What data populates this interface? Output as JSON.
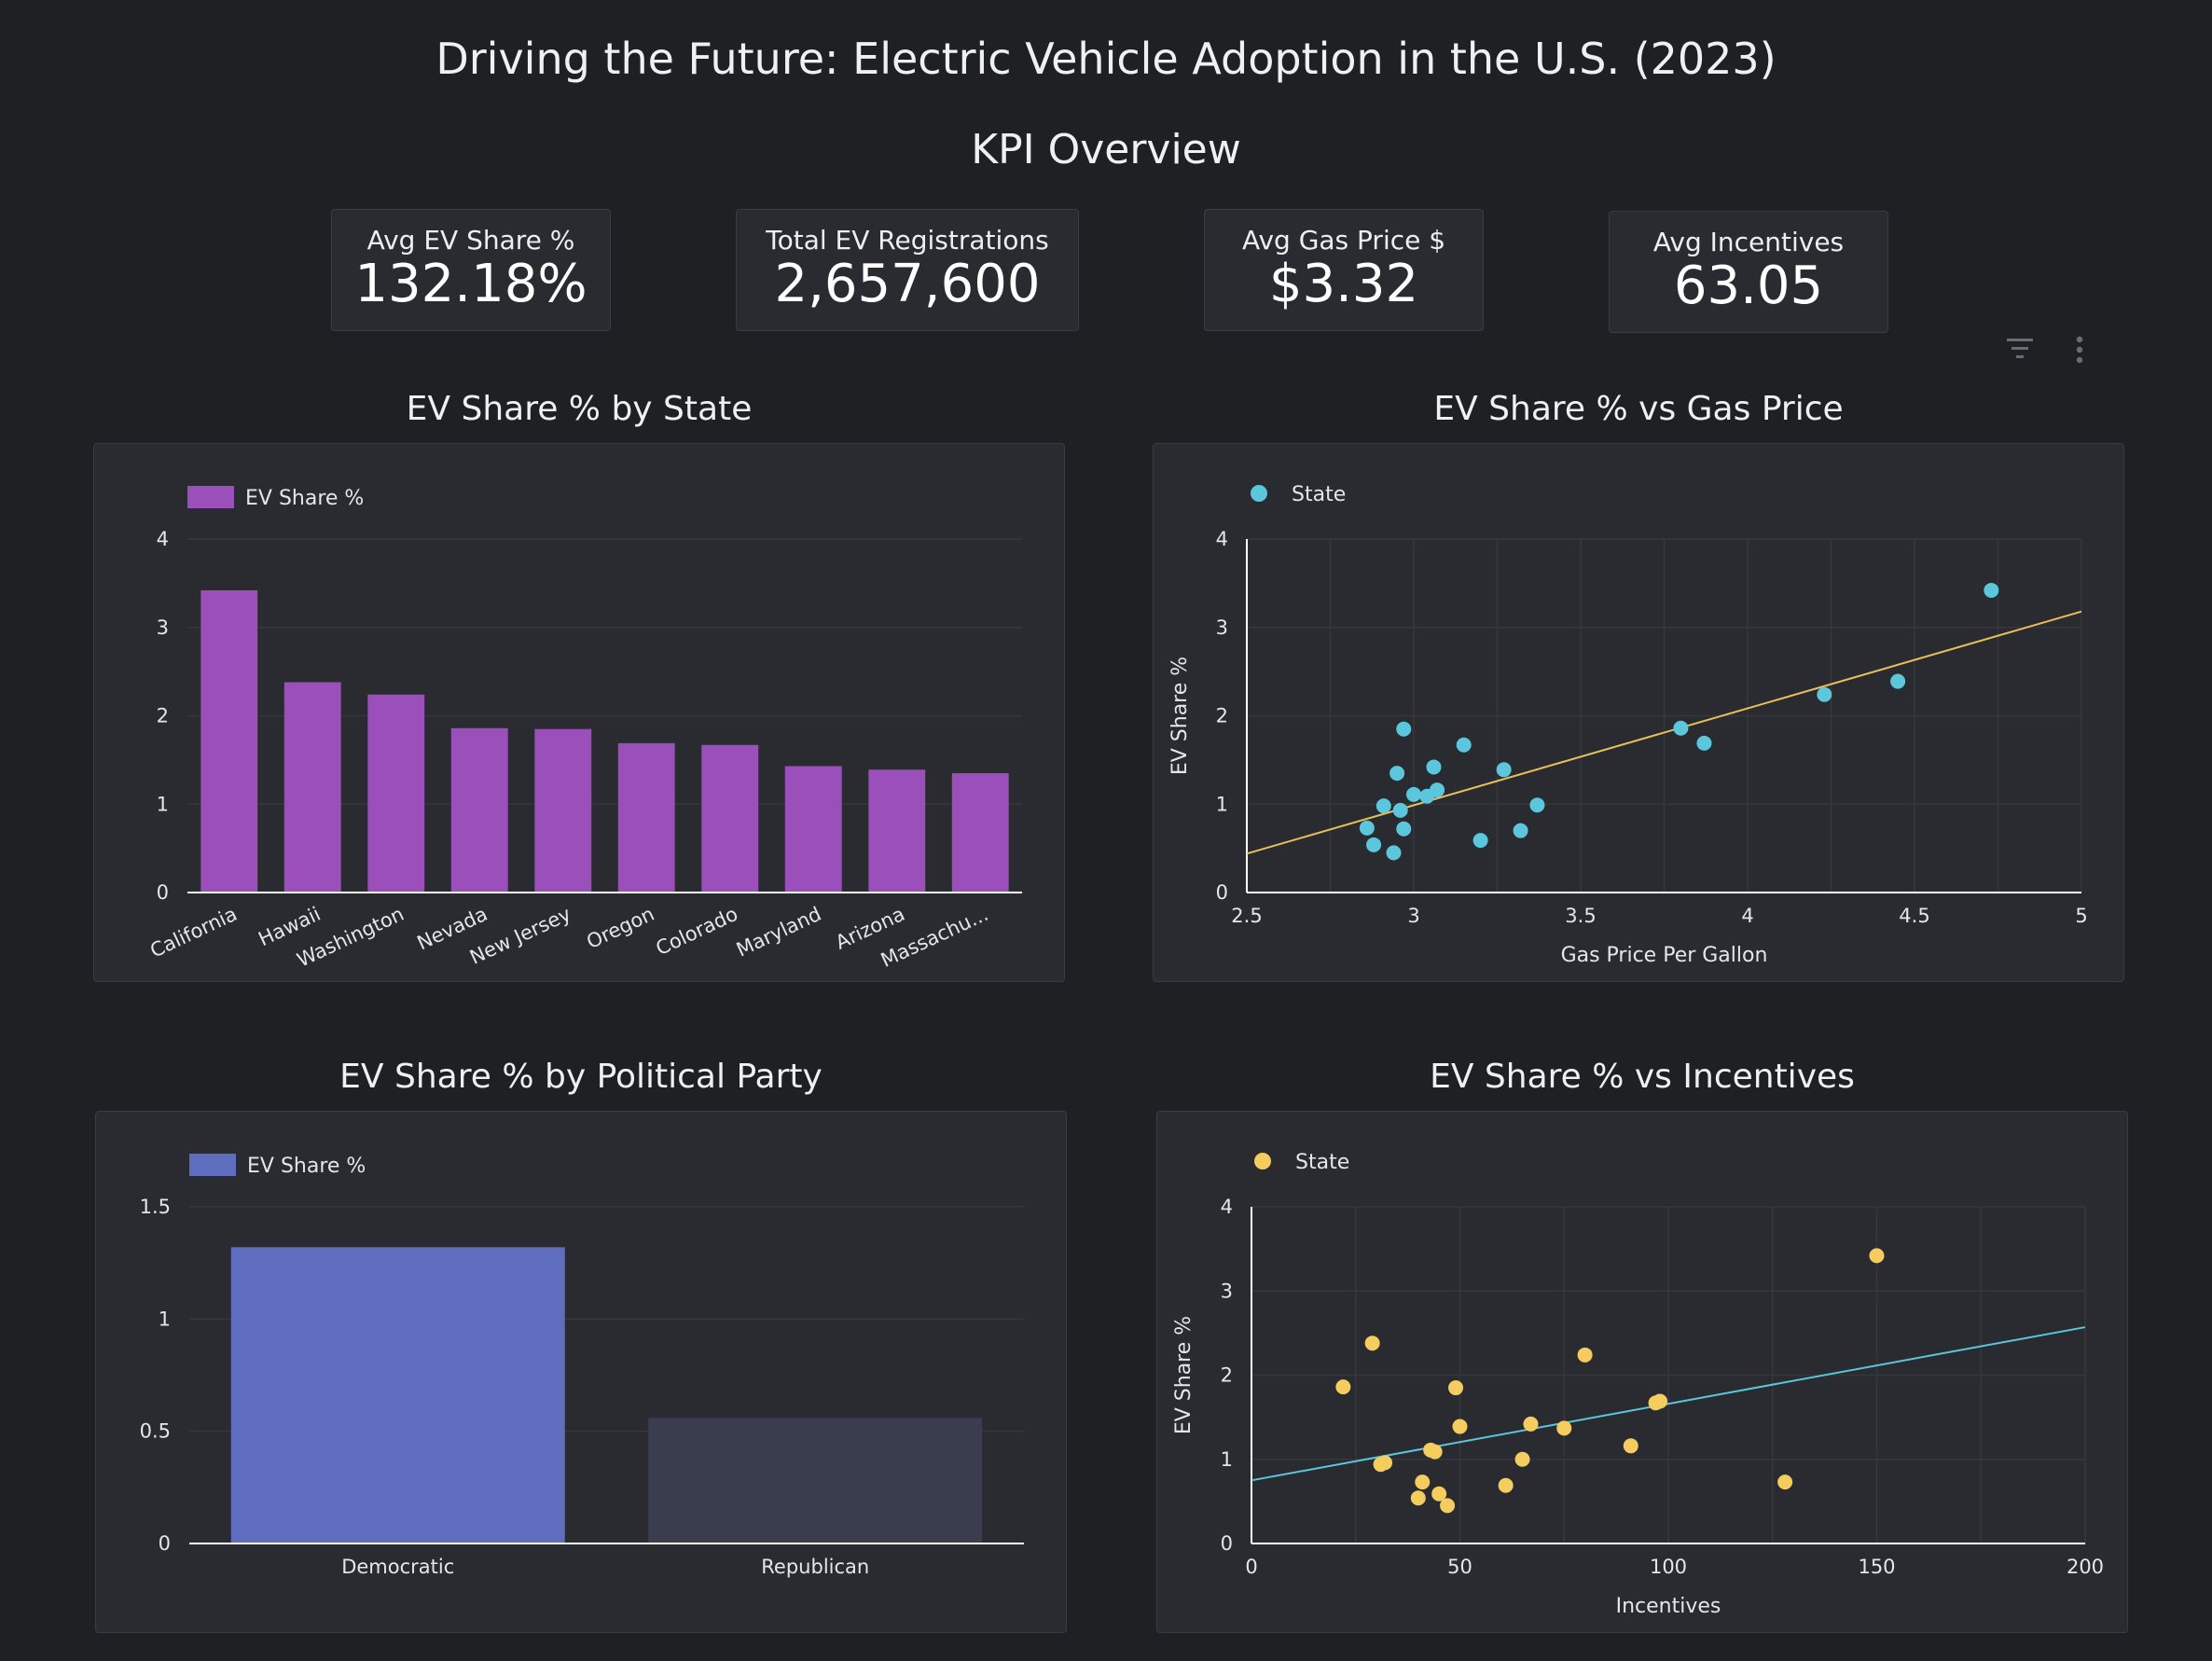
{
  "header": {
    "title": "Driving the Future:  Electric Vehicle Adoption in the U.S. (2023)",
    "kpi_title": "KPI Overview"
  },
  "kpis": [
    {
      "label": "Avg EV Share %",
      "value": "132.18%"
    },
    {
      "label": "Total EV Registrations",
      "value": "2,657,600"
    },
    {
      "label": "Avg Gas Price $",
      "value": "$3.32"
    },
    {
      "label": "Avg Incentives",
      "value": "63.05"
    }
  ],
  "toolbar": {
    "filter_icon": "filter-icon",
    "menu_icon": "more-vert-icon"
  },
  "colors": {
    "purple": "#9b4fba",
    "cyan": "#5bc6dc",
    "yellow": "#f5cc5e",
    "blue": "#5f6dbf",
    "muted_bar": "#3a3d4e",
    "trend_gas": "#e8c05a",
    "trend_inc": "#5bc6dc"
  },
  "chart_data": [
    {
      "type": "bar",
      "title": "EV Share % by State",
      "legend": "EV Share %",
      "categories": [
        "California",
        "Hawaii",
        "Washington",
        "Nevada",
        "New Jersey",
        "Oregon",
        "Colorado",
        "Maryland",
        "Arizona",
        "Massachu..."
      ],
      "values": [
        3.42,
        2.38,
        2.24,
        1.86,
        1.85,
        1.69,
        1.67,
        1.43,
        1.39,
        1.35
      ],
      "ylim": [
        0,
        4
      ],
      "yticks": [
        0,
        1,
        2,
        3,
        4
      ],
      "legend_position": "top-left"
    },
    {
      "type": "scatter",
      "title": "EV Share % vs Gas Price",
      "legend": "State",
      "xlabel": "Gas Price Per Gallon",
      "ylabel": "EV Share %",
      "xlim": [
        2.5,
        5
      ],
      "ylim": [
        0,
        4
      ],
      "xticks": [
        2.5,
        3,
        3.5,
        4,
        4.5,
        5
      ],
      "yticks": [
        0,
        1,
        2,
        3,
        4
      ],
      "trendline": {
        "x": [
          2.5,
          5
        ],
        "y": [
          0.44,
          3.18
        ]
      },
      "points": [
        {
          "x": 4.73,
          "y": 3.42
        },
        {
          "x": 4.45,
          "y": 2.39
        },
        {
          "x": 4.23,
          "y": 2.24
        },
        {
          "x": 3.8,
          "y": 1.86
        },
        {
          "x": 3.87,
          "y": 1.69
        },
        {
          "x": 2.97,
          "y": 1.85
        },
        {
          "x": 3.15,
          "y": 1.67
        },
        {
          "x": 3.06,
          "y": 1.42
        },
        {
          "x": 3.27,
          "y": 1.39
        },
        {
          "x": 2.95,
          "y": 1.35
        },
        {
          "x": 3.07,
          "y": 1.16
        },
        {
          "x": 3.0,
          "y": 1.11
        },
        {
          "x": 3.04,
          "y": 1.09
        },
        {
          "x": 3.37,
          "y": 0.99
        },
        {
          "x": 2.91,
          "y": 0.98
        },
        {
          "x": 2.96,
          "y": 0.93
        },
        {
          "x": 2.86,
          "y": 0.73
        },
        {
          "x": 2.97,
          "y": 0.72
        },
        {
          "x": 3.32,
          "y": 0.7
        },
        {
          "x": 3.2,
          "y": 0.59
        },
        {
          "x": 2.88,
          "y": 0.54
        },
        {
          "x": 2.94,
          "y": 0.45
        }
      ],
      "legend_position": "top-left"
    },
    {
      "type": "bar",
      "title": "EV Share % by Political Party",
      "legend": "EV Share %",
      "categories": [
        "Democratic",
        "Republican"
      ],
      "values": [
        1.32,
        0.56
      ],
      "ylim": [
        0,
        1.5
      ],
      "yticks": [
        0,
        0.5,
        1,
        1.5
      ],
      "legend_position": "top-left"
    },
    {
      "type": "scatter",
      "title": "EV Share % vs Incentives",
      "legend": "State",
      "xlabel": "Incentives",
      "ylabel": "EV Share %",
      "xlim": [
        0,
        200
      ],
      "ylim": [
        0,
        4
      ],
      "xticks": [
        0,
        50,
        100,
        150,
        200
      ],
      "yticks": [
        0,
        1,
        2,
        3,
        4
      ],
      "trendline": {
        "x": [
          0,
          200
        ],
        "y": [
          0.75,
          2.57
        ]
      },
      "points": [
        {
          "x": 150,
          "y": 3.42
        },
        {
          "x": 29,
          "y": 2.38
        },
        {
          "x": 80,
          "y": 2.24
        },
        {
          "x": 22,
          "y": 1.86
        },
        {
          "x": 49,
          "y": 1.85
        },
        {
          "x": 98,
          "y": 1.69
        },
        {
          "x": 97,
          "y": 1.67
        },
        {
          "x": 67,
          "y": 1.42
        },
        {
          "x": 50,
          "y": 1.39
        },
        {
          "x": 75,
          "y": 1.37
        },
        {
          "x": 91,
          "y": 1.16
        },
        {
          "x": 43,
          "y": 1.11
        },
        {
          "x": 44,
          "y": 1.09
        },
        {
          "x": 65,
          "y": 1.0
        },
        {
          "x": 32,
          "y": 0.96
        },
        {
          "x": 31,
          "y": 0.94
        },
        {
          "x": 41,
          "y": 0.73
        },
        {
          "x": 128,
          "y": 0.73
        },
        {
          "x": 61,
          "y": 0.69
        },
        {
          "x": 45,
          "y": 0.59
        },
        {
          "x": 40,
          "y": 0.54
        },
        {
          "x": 47,
          "y": 0.45
        }
      ],
      "legend_position": "top-left"
    }
  ]
}
